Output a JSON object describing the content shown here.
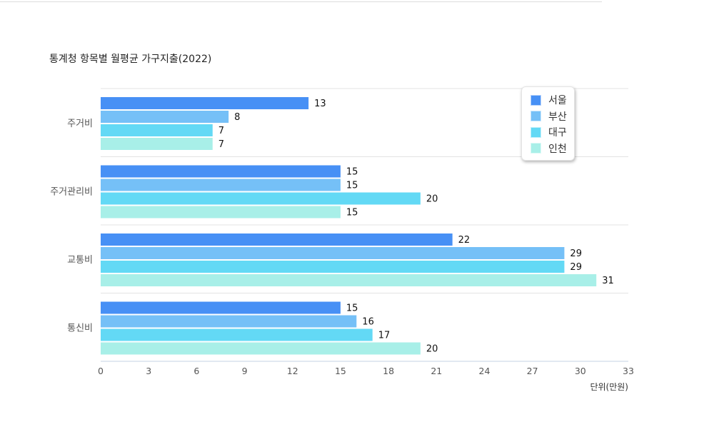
{
  "chart_data": {
    "type": "bar",
    "orientation": "horizontal",
    "title": "통계청 항목별 월평균 가구지출(2022)",
    "categories": [
      "주거비",
      "주거관리비",
      "교통비",
      "통신비"
    ],
    "series": [
      {
        "name": "서울",
        "color": "#4790f5",
        "values": [
          13,
          15,
          22,
          15
        ]
      },
      {
        "name": "부산",
        "color": "#75c0f7",
        "values": [
          8,
          15,
          29,
          16
        ]
      },
      {
        "name": "대구",
        "color": "#63d9f5",
        "values": [
          7,
          20,
          29,
          17
        ]
      },
      {
        "name": "인천",
        "color": "#a8efe8",
        "values": [
          7,
          15,
          31,
          20
        ]
      }
    ],
    "xlim": [
      0,
      33
    ],
    "xticks": [
      0,
      3,
      6,
      9,
      12,
      15,
      18,
      21,
      24,
      27,
      30,
      33
    ],
    "xlabel": "단위(만원)",
    "ylabel": "",
    "data_labels": true,
    "grid": "category separators",
    "legend_position": "top-right"
  }
}
